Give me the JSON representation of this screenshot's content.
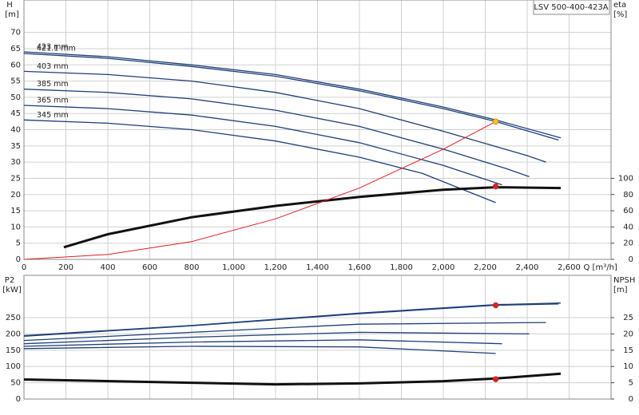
{
  "chart_data": [
    {
      "type": "line",
      "legend_title": "LSV 500-400-423A",
      "y_label": "H",
      "y_unit": "[m]",
      "y2_label": "eta",
      "y2_unit": "[%]",
      "x_label": "Q [m³/h]",
      "xlim": [
        0,
        2800
      ],
      "ylim": [
        0,
        80
      ],
      "y2lim": [
        0,
        320
      ],
      "grid": true,
      "xticks": [
        0,
        200,
        400,
        600,
        800,
        {
          "value": 1000,
          "label": "1,000"
        },
        {
          "value": 1200,
          "label": "1,200"
        },
        {
          "value": 1400,
          "label": "1,400"
        },
        {
          "value": 1600,
          "label": "1,600"
        },
        {
          "value": 1800,
          "label": "1,800"
        },
        {
          "value": 2000,
          "label": "2,000"
        },
        {
          "value": 2200,
          "label": "2,200"
        },
        {
          "value": 2400,
          "label": "2,400"
        },
        {
          "value": 2600,
          "label": "2,600"
        }
      ],
      "yticks": [
        0,
        5,
        10,
        15,
        20,
        25,
        30,
        35,
        40,
        45,
        50,
        55,
        60,
        65,
        70
      ],
      "y2ticks": [
        0,
        20,
        40,
        60,
        80,
        100
      ],
      "series": [
        {
          "name": "423 mm",
          "color": "#1f3f7a",
          "x": [
            0,
            400,
            800,
            1200,
            1600,
            2000,
            2250,
            2560
          ],
          "values": [
            64,
            62.5,
            60,
            57,
            52.5,
            47,
            43,
            37.5
          ]
        },
        {
          "name": "421.1 mm",
          "color": "#1f3f7a",
          "x": [
            0,
            400,
            800,
            1200,
            1600,
            2000,
            2250,
            2550
          ],
          "values": [
            63.5,
            62,
            59.5,
            56.5,
            52,
            46.5,
            42.5,
            36.8
          ]
        },
        {
          "name": "403 mm",
          "color": "#1f3f7a",
          "x": [
            0,
            400,
            800,
            1200,
            1600,
            2000,
            2400,
            2490
          ],
          "values": [
            58,
            57,
            55,
            51.5,
            46.5,
            39.5,
            32,
            30
          ]
        },
        {
          "name": "385 mm",
          "color": "#1f3f7a",
          "x": [
            0,
            400,
            800,
            1200,
            1600,
            2000,
            2300,
            2410
          ],
          "values": [
            52.5,
            51.5,
            49.5,
            46,
            41,
            34,
            28,
            25.5
          ]
        },
        {
          "name": "365 mm",
          "color": "#1f3f7a",
          "x": [
            0,
            400,
            800,
            1200,
            1600,
            2000,
            2280
          ],
          "values": [
            47.5,
            46.5,
            44.5,
            41,
            36,
            29,
            23
          ]
        },
        {
          "name": "345 mm",
          "color": "#1f3f7a",
          "x": [
            0,
            400,
            800,
            1200,
            1600,
            1900,
            2250
          ],
          "values": [
            43,
            42,
            40,
            36.5,
            31.5,
            26.5,
            17.5
          ]
        },
        {
          "color": "#111111",
          "axis": "y2",
          "width": 3,
          "x": [
            190,
            400,
            800,
            1200,
            1600,
            2000,
            2250,
            2560
          ],
          "values": [
            15,
            31,
            52,
            66,
            77,
            86,
            89,
            88
          ]
        },
        {
          "color": "#e02020",
          "width": 1,
          "x": [
            0,
            400,
            800,
            1200,
            1600,
            2000,
            2250
          ],
          "values": [
            0,
            1.5,
            5.5,
            12.5,
            22,
            34,
            42.5
          ]
        }
      ],
      "points": [
        {
          "x": 2250,
          "y": 42.5,
          "color": "#f5c518"
        },
        {
          "x": 2250,
          "y": 90,
          "axis": "y2",
          "color": "#e02020"
        }
      ]
    },
    {
      "type": "line",
      "y_label": "P2",
      "y_unit": "[kW]",
      "y2_label": "NPSH",
      "y2_unit": "[m]",
      "xlim": [
        0,
        2800
      ],
      "ylim": [
        0,
        380
      ],
      "y2lim": [
        0,
        38
      ],
      "grid": true,
      "yticks": [
        0,
        50,
        100,
        150,
        200,
        250
      ],
      "y2ticks": [
        0,
        5,
        10,
        15,
        20,
        25
      ],
      "series": [
        {
          "color": "#1f3f7a",
          "x": [
            0,
            800,
            1600,
            2250,
            2560
          ],
          "values": [
            195,
            226,
            264,
            290,
            295
          ]
        },
        {
          "color": "#1f3f7a",
          "x": [
            0,
            800,
            1600,
            2250,
            2550
          ],
          "values": [
            193,
            225,
            262,
            288,
            292
          ]
        },
        {
          "color": "#1f3f7a",
          "x": [
            0,
            800,
            1600,
            2490
          ],
          "values": [
            180,
            205,
            230,
            235
          ]
        },
        {
          "color": "#1f3f7a",
          "x": [
            0,
            800,
            1600,
            2410
          ],
          "values": [
            170,
            190,
            205,
            200
          ]
        },
        {
          "color": "#1f3f7a",
          "x": [
            0,
            800,
            1600,
            2280
          ],
          "values": [
            162,
            175,
            182,
            170
          ]
        },
        {
          "color": "#1f3f7a",
          "x": [
            0,
            800,
            1600,
            2250
          ],
          "values": [
            155,
            162,
            160,
            140
          ]
        },
        {
          "color": "#111111",
          "axis": "y2",
          "width": 3,
          "x": [
            0,
            800,
            1200,
            1600,
            2000,
            2250,
            2560
          ],
          "values": [
            6,
            5,
            4.5,
            4.8,
            5.5,
            6.3,
            7.8
          ]
        }
      ],
      "points": [
        {
          "x": 2250,
          "y": 288,
          "color": "#e02020"
        },
        {
          "x": 2250,
          "y": 6.1,
          "axis": "y2",
          "color": "#e02020"
        }
      ]
    }
  ]
}
